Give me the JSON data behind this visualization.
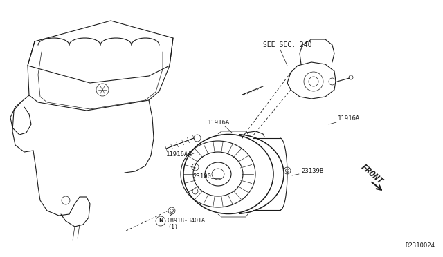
{
  "bg_color": "#ffffff",
  "line_color": "#1a1a1a",
  "diagram_ref": "R2310024",
  "labels": {
    "see_sec": "SEE SEC. 240",
    "11916A_left": "11916A",
    "11916A_right": "11916A",
    "11916AA": "11916AA",
    "23100": "23100",
    "23139B": "23139B",
    "bolt_label_1": "08918-3401A",
    "bolt_label_2": "(1)",
    "front_label": "FRONT",
    "N_symbol": "N"
  },
  "font_size_small": 6.5,
  "font_size_ref": 6.5,
  "font_size_front": 9
}
